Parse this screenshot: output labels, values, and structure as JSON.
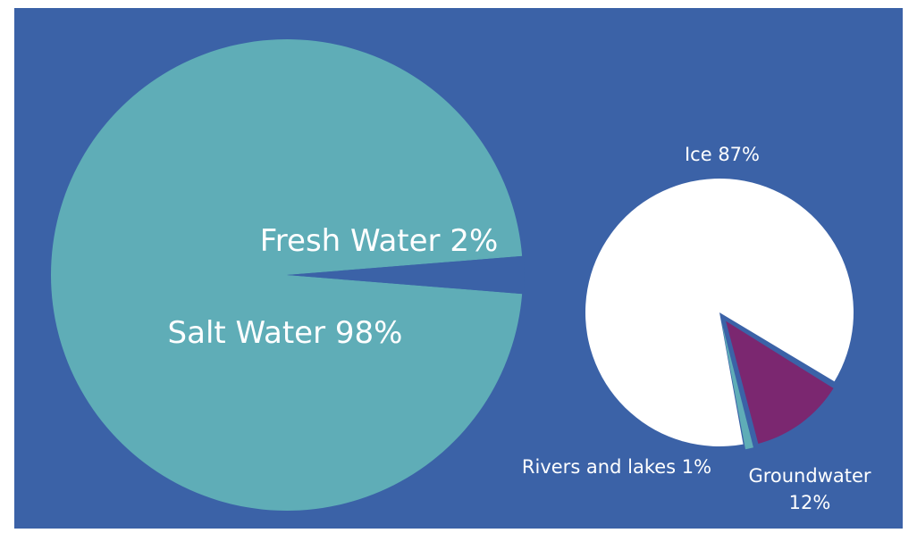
{
  "chart_data": [
    {
      "type": "pie",
      "slices": [
        {
          "label": "Salt Water 98%",
          "value": 98,
          "color": "#5fadb7"
        },
        {
          "label": "Fresh Water 2%",
          "value": 2,
          "color": "#3b62a7"
        }
      ]
    },
    {
      "type": "pie",
      "slices": [
        {
          "label": "Ice 87%",
          "value": 87,
          "color": "#ffffff"
        },
        {
          "label": "Groundwater 12%",
          "value": 12,
          "color": "#7b2770"
        },
        {
          "label": "Rivers and lakes 1%",
          "value": 1,
          "color": "#5fadb7"
        }
      ]
    }
  ],
  "colors": {
    "background": "#3b62a7",
    "label_text": "#ffffff"
  }
}
